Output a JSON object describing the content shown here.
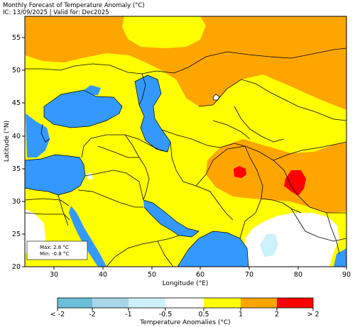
{
  "header": {
    "title": "Monthly Forecast of Temperature Anomaly (°C)",
    "subtitle": "IC: 13/09/2025 | Valid for: Dec2025"
  },
  "map": {
    "lon_range": [
      24.5,
      90
    ],
    "lat_range": [
      20,
      58
    ],
    "x_ticks": [
      "30",
      "40",
      "50",
      "60",
      "70",
      "80",
      "90"
    ],
    "y_ticks": [
      "20",
      "25",
      "30",
      "35",
      "40",
      "45",
      "50",
      "55"
    ],
    "xlabel": "Longitude (°E)",
    "ylabel": "Latitude (°N)",
    "max_label": "Max: 2.8 °C",
    "min_label": "Min: -0.8 °C"
  },
  "colorbar": {
    "title": "Temperature Anomalies (°C)",
    "labels": [
      "< -2",
      "-2",
      "-1",
      "-0.5",
      "0.5",
      "1",
      "2",
      "> 2"
    ],
    "colors": [
      "#6cbfd8",
      "#a8d6e8",
      "#cdf1fa",
      "#ffffff",
      "#ffff00",
      "#ffa500",
      "#ff0000"
    ]
  },
  "colors": {
    "water": "#3399ff",
    "anomaly_0_5_to_1": "#ffff00",
    "anomaly_1_to_2": "#ffa500",
    "anomaly_above_2": "#ff0000",
    "anomaly_neutral": "#ffffff",
    "anomaly_minus_0_5_to_minus_1": "#cdf1fa"
  }
}
